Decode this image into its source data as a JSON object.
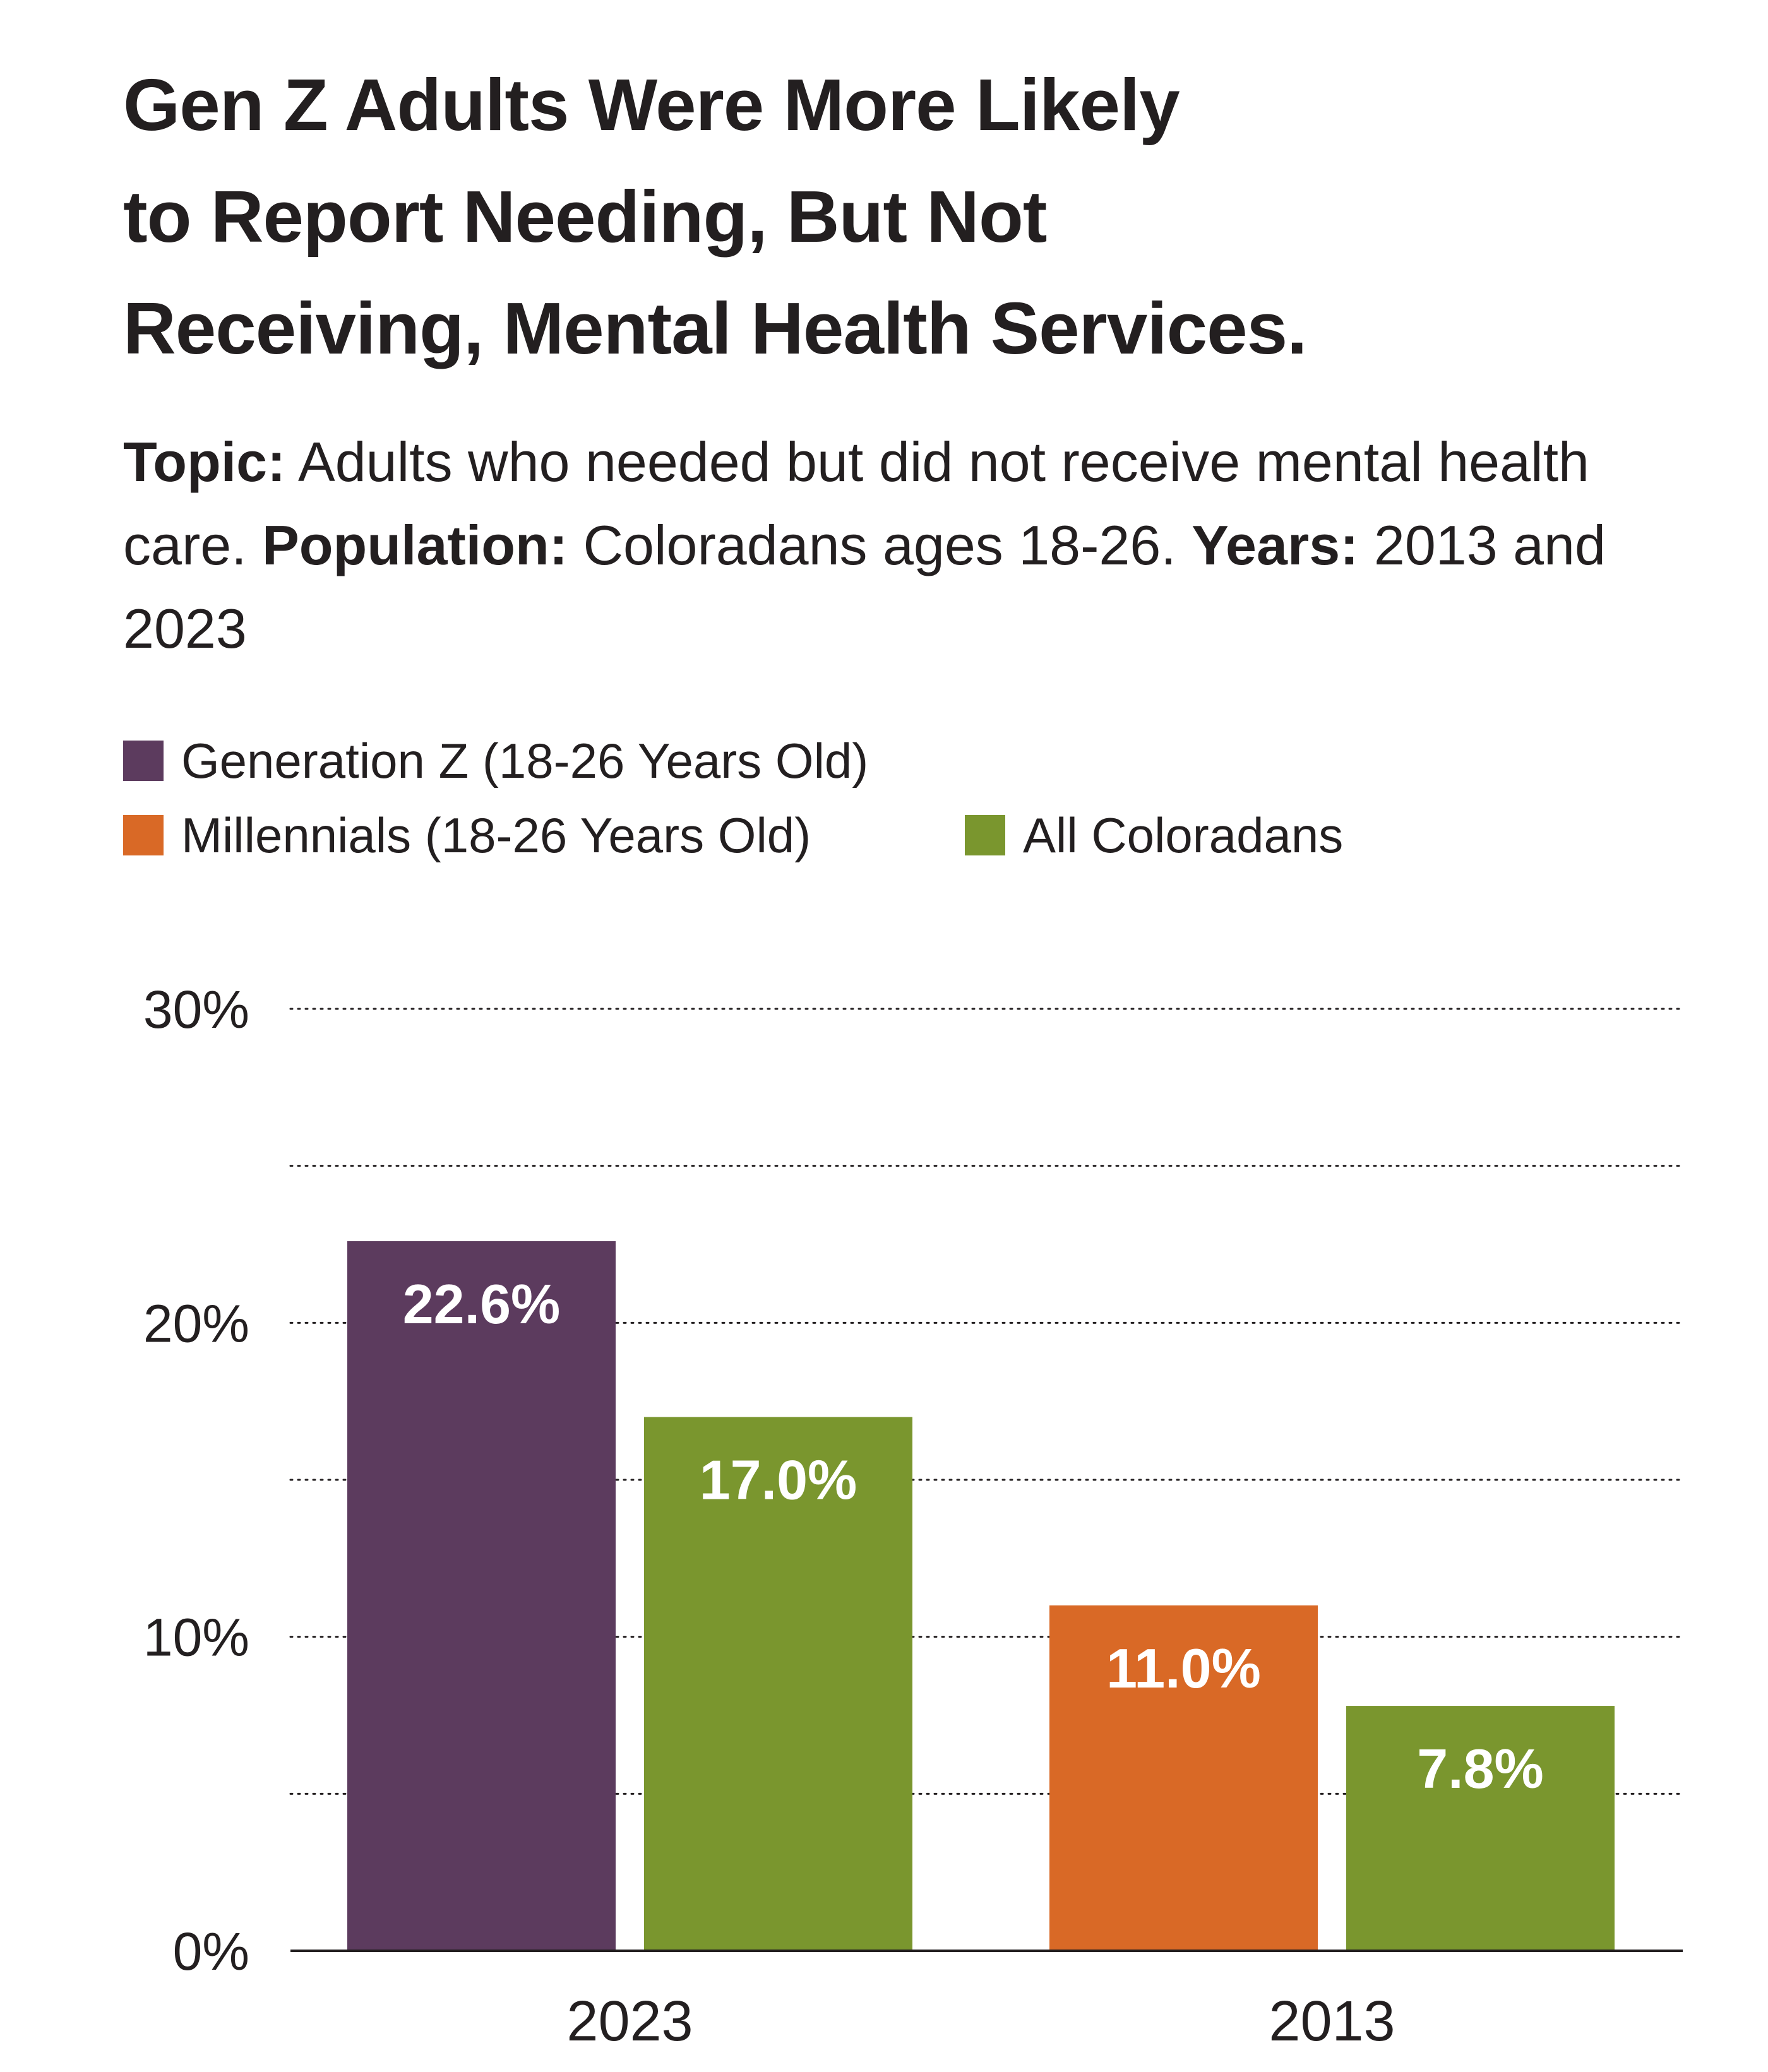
{
  "title_lines": [
    "Gen Z Adults Were More Likely",
    "to Report Needing, But Not",
    "Receiving, Mental Health Services."
  ],
  "subtitle": {
    "topic_label": "Topic:",
    "topic_text": " Adults who needed but did not receive mental health care. ",
    "population_label": "Population:",
    "population_text": " Coloradans ages 18-26. ",
    "years_label": "Years:",
    "years_text": " 2013 and 2023"
  },
  "chart_data": {
    "type": "bar",
    "categories": [
      "2023",
      "2013"
    ],
    "series": [
      {
        "name": "Generation Z (18-26 Years Old)",
        "color": "#5c3b5e"
      },
      {
        "name": "Millennials (18-26 Years Old)",
        "color": "#d96926"
      },
      {
        "name": "All Coloradans",
        "color": "#7a962e"
      }
    ],
    "bars": [
      {
        "category": "2023",
        "series": "Generation Z (18-26 Years Old)",
        "value": 22.6,
        "label": "22.6%"
      },
      {
        "category": "2023",
        "series": "All Coloradans",
        "value": 17.0,
        "label": "17.0%"
      },
      {
        "category": "2013",
        "series": "Millennials (18-26 Years Old)",
        "value": 11.0,
        "label": "11.0%"
      },
      {
        "category": "2013",
        "series": "All Coloradans",
        "value": 7.8,
        "label": "7.8%"
      }
    ],
    "ylim": [
      0,
      30
    ],
    "yticks": [
      0,
      10,
      20,
      30
    ],
    "ytick_labels": [
      "0%",
      "10%",
      "20%",
      "30%"
    ],
    "minor_gridlines": [
      5,
      15,
      25
    ],
    "grid": true,
    "legend_position": "top-left"
  }
}
